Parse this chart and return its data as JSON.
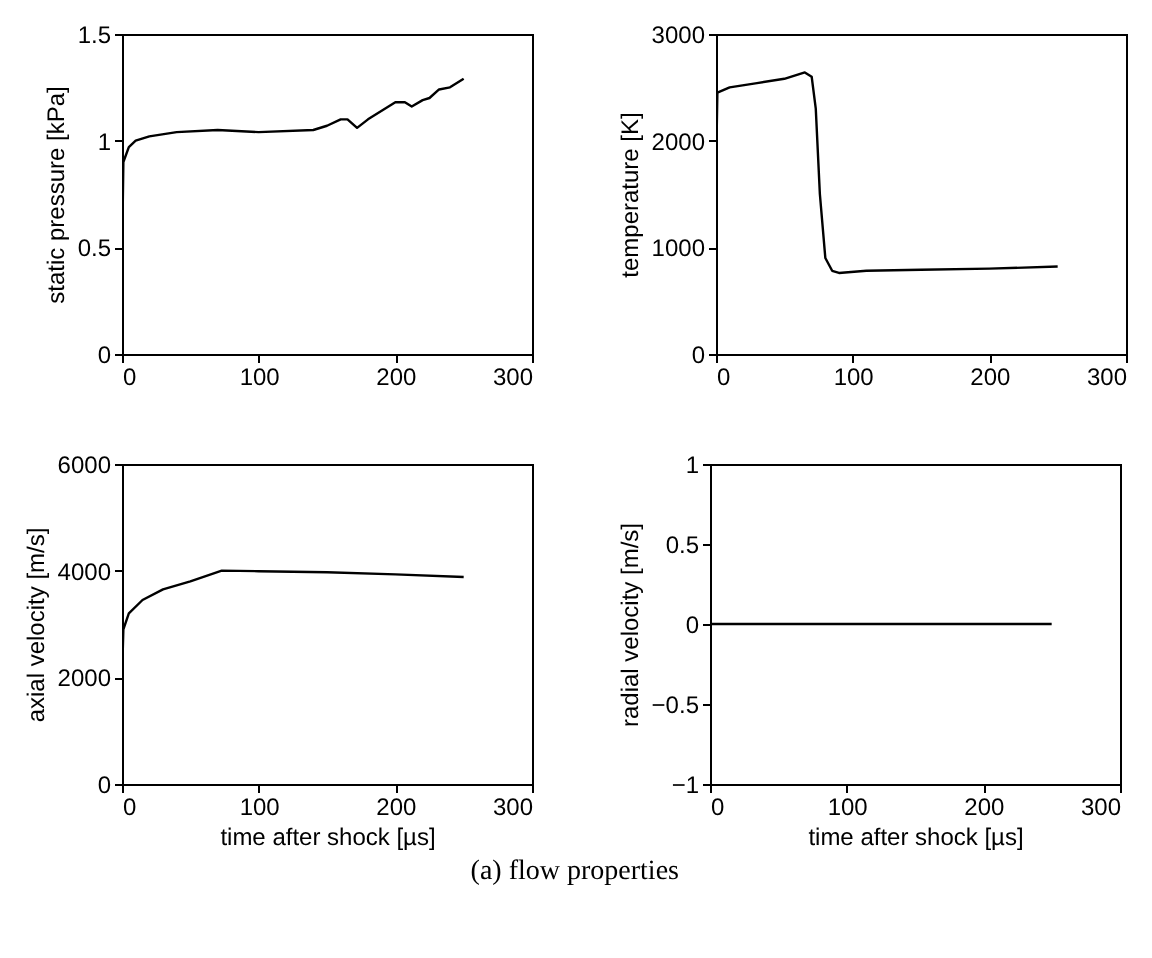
{
  "chart_data": [
    {
      "type": "line",
      "ylabel": "static pressure [kPa]",
      "xlim": [
        0,
        300
      ],
      "xticks": [
        0,
        100,
        200,
        300
      ],
      "ylim": [
        0,
        1.5
      ],
      "yticks": [
        0,
        0.5,
        1,
        1.5
      ],
      "grid": false,
      "series": [
        {
          "color": "#000000",
          "x": [
            0,
            1,
            5,
            10,
            20,
            40,
            70,
            100,
            140,
            150,
            160,
            165,
            172,
            180,
            190,
            200,
            207,
            212,
            220,
            225,
            232,
            240,
            250
          ],
          "values": [
            0.45,
            0.9,
            0.97,
            1.0,
            1.02,
            1.04,
            1.05,
            1.04,
            1.05,
            1.07,
            1.1,
            1.1,
            1.06,
            1.1,
            1.14,
            1.18,
            1.18,
            1.16,
            1.19,
            1.2,
            1.24,
            1.25,
            1.29
          ]
        }
      ]
    },
    {
      "type": "line",
      "ylabel": "temperature [K]",
      "xlim": [
        0,
        300
      ],
      "xticks": [
        0,
        100,
        200,
        300
      ],
      "ylim": [
        0,
        3000
      ],
      "yticks": [
        0,
        1000,
        2000,
        3000
      ],
      "grid": false,
      "series": [
        {
          "color": "#000000",
          "x": [
            0,
            1,
            10,
            30,
            50,
            65,
            70,
            73,
            76,
            80,
            85,
            90,
            110,
            150,
            200,
            250
          ],
          "values": [
            1700,
            2450,
            2500,
            2540,
            2580,
            2640,
            2600,
            2300,
            1500,
            900,
            780,
            760,
            780,
            790,
            800,
            820
          ]
        }
      ]
    },
    {
      "type": "line",
      "xlabel": "time after shock [µs]",
      "ylabel": "axial velocity [m/s]",
      "xlim": [
        0,
        300
      ],
      "xticks": [
        0,
        100,
        200,
        300
      ],
      "ylim": [
        0,
        6000
      ],
      "yticks": [
        0,
        2000,
        4000,
        6000
      ],
      "grid": false,
      "series": [
        {
          "color": "#000000",
          "x": [
            0,
            1,
            5,
            15,
            30,
            50,
            73,
            100,
            150,
            200,
            250
          ],
          "values": [
            2000,
            2900,
            3200,
            3450,
            3650,
            3800,
            4000,
            3990,
            3970,
            3930,
            3880
          ]
        }
      ]
    },
    {
      "type": "line",
      "xlabel": "time after shock [µs]",
      "ylabel": "radial velocity [m/s]",
      "xlim": [
        0,
        300
      ],
      "xticks": [
        0,
        100,
        200,
        300
      ],
      "ylim": [
        -1,
        1
      ],
      "yticks": [
        -1,
        -0.5,
        0,
        0.5,
        1
      ],
      "grid": false,
      "annotations": [
        "(a) flow properties"
      ],
      "series": [
        {
          "color": "#000000",
          "x": [
            0,
            250
          ],
          "values": [
            0,
            0
          ]
        }
      ]
    }
  ]
}
